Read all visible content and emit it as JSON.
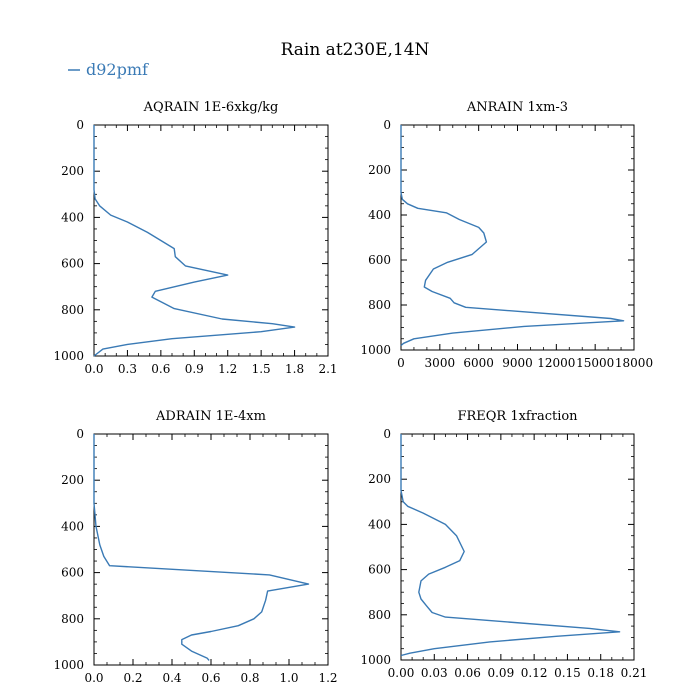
{
  "title": "Rain at230E,14N",
  "legend": {
    "label": "d92pmf",
    "color": "#3a7ab5"
  },
  "chart_data": [
    {
      "type": "line",
      "title": "AQRAIN  1E-6xkg/kg",
      "xlim": [
        0,
        2.1
      ],
      "ylim": [
        0,
        1000
      ],
      "y_inverted": true,
      "xticks": [
        "0.0",
        "0.3",
        "0.6",
        "0.9",
        "1.2",
        "1.5",
        "1.8",
        "2.1"
      ],
      "yticks": [
        "0",
        "200",
        "400",
        "600",
        "800",
        "1000"
      ],
      "series": [
        {
          "name": "d92pmf",
          "x": [
            0,
            0,
            0.01,
            0.05,
            0.15,
            0.3,
            0.48,
            0.72,
            0.73,
            0.82,
            1.2,
            0.9,
            0.55,
            0.52,
            0.62,
            0.72,
            1.15,
            1.6,
            1.8,
            1.5,
            0.7,
            0.3,
            0.08,
            0
          ],
          "y": [
            0,
            280,
            320,
            350,
            390,
            420,
            465,
            535,
            570,
            610,
            650,
            680,
            720,
            745,
            770,
            795,
            840,
            860,
            875,
            895,
            925,
            950,
            970,
            1000
          ]
        }
      ]
    },
    {
      "type": "line",
      "title": "ANRAIN  1xm-3",
      "xlim": [
        0,
        18000
      ],
      "ylim": [
        0,
        1000
      ],
      "y_inverted": true,
      "xticks": [
        "0",
        "3000",
        "6000",
        "9000",
        "12000",
        "15000",
        "18000"
      ],
      "yticks": [
        "0",
        "200",
        "400",
        "600",
        "800",
        "1000"
      ],
      "series": [
        {
          "name": "d92pmf",
          "x": [
            0,
            0,
            100,
            500,
            1300,
            3500,
            4500,
            6000,
            6400,
            6600,
            5500,
            3600,
            2500,
            1900,
            1800,
            2400,
            3800,
            4100,
            5000,
            16200,
            17200,
            9500,
            4000,
            1000,
            200,
            0
          ],
          "y": [
            0,
            300,
            330,
            350,
            370,
            390,
            420,
            455,
            480,
            520,
            575,
            610,
            640,
            690,
            720,
            740,
            770,
            790,
            810,
            860,
            870,
            895,
            925,
            950,
            970,
            980
          ]
        }
      ]
    },
    {
      "type": "line",
      "title": "ADRAIN  1E-4xm",
      "xlim": [
        0,
        1.2
      ],
      "ylim": [
        0,
        1000
      ],
      "y_inverted": true,
      "xticks": [
        "0.0",
        "0.2",
        "0.4",
        "0.6",
        "0.8",
        "1.0",
        "1.2"
      ],
      "yticks": [
        "0",
        "200",
        "400",
        "600",
        "800",
        "1000"
      ],
      "series": [
        {
          "name": "d92pmf",
          "x": [
            0,
            0,
            0.01,
            0.03,
            0.05,
            0.08,
            0.9,
            1.1,
            0.89,
            0.88,
            0.86,
            0.82,
            0.74,
            0.6,
            0.5,
            0.45,
            0.45,
            0.5,
            0.58,
            0.59
          ],
          "y": [
            0,
            300,
            400,
            480,
            530,
            570,
            610,
            650,
            680,
            720,
            770,
            800,
            830,
            855,
            870,
            890,
            910,
            940,
            970,
            980
          ]
        }
      ]
    },
    {
      "type": "line",
      "title": "FREQR  1xfraction",
      "xlim": [
        0,
        0.21
      ],
      "ylim": [
        0,
        1000
      ],
      "y_inverted": true,
      "xticks": [
        "0.00",
        "0.03",
        "0.06",
        "0.09",
        "0.12",
        "0.15",
        "0.18",
        "0.21"
      ],
      "yticks": [
        "0",
        "200",
        "400",
        "600",
        "800",
        "1000"
      ],
      "series": [
        {
          "name": "d92pmf",
          "x": [
            0,
            0,
            0.002,
            0.006,
            0.02,
            0.04,
            0.05,
            0.057,
            0.053,
            0.04,
            0.025,
            0.018,
            0.016,
            0.018,
            0.023,
            0.028,
            0.04,
            0.17,
            0.197,
            0.14,
            0.08,
            0.03,
            0.008,
            0
          ],
          "y": [
            0,
            250,
            300,
            320,
            350,
            400,
            450,
            520,
            560,
            590,
            620,
            650,
            700,
            730,
            760,
            790,
            810,
            860,
            875,
            895,
            920,
            950,
            970,
            980
          ]
        }
      ]
    }
  ]
}
